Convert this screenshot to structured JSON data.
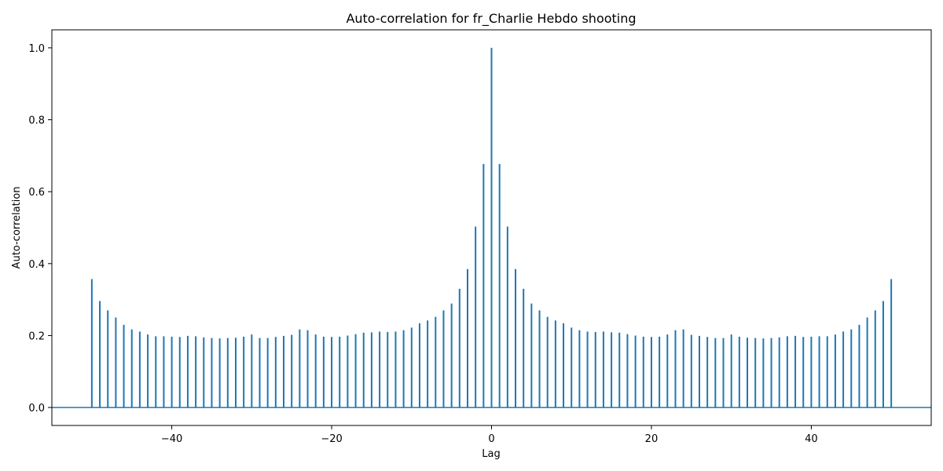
{
  "chart_data": {
    "type": "stem",
    "title": "Auto-correlation for fr_Charlie Hebdo shooting",
    "xlabel": "Lag",
    "ylabel": "Auto-correlation",
    "xlim": [
      -55,
      55
    ],
    "ylim": [
      -0.05,
      1.05
    ],
    "xticks": [
      -40,
      -20,
      0,
      20,
      40
    ],
    "xtick_labels": [
      "−40",
      "−20",
      "0",
      "20",
      "40"
    ],
    "yticks": [
      0.0,
      0.2,
      0.4,
      0.6,
      0.8,
      1.0
    ],
    "ytick_labels": [
      "0.0",
      "0.2",
      "0.4",
      "0.6",
      "0.8",
      "1.0"
    ],
    "grid": false,
    "color": "#1f77b4",
    "baseline": 0,
    "x_start": -50,
    "values": [
      0.357,
      0.296,
      0.27,
      0.25,
      0.23,
      0.217,
      0.211,
      0.203,
      0.198,
      0.198,
      0.197,
      0.196,
      0.199,
      0.198,
      0.195,
      0.193,
      0.192,
      0.193,
      0.194,
      0.197,
      0.203,
      0.193,
      0.193,
      0.196,
      0.199,
      0.202,
      0.217,
      0.215,
      0.203,
      0.197,
      0.196,
      0.197,
      0.2,
      0.204,
      0.208,
      0.209,
      0.211,
      0.21,
      0.211,
      0.215,
      0.222,
      0.234,
      0.242,
      0.252,
      0.27,
      0.289,
      0.33,
      0.385,
      0.503,
      0.677,
      1.0,
      0.677,
      0.503,
      0.385,
      0.33,
      0.289,
      0.27,
      0.252,
      0.242,
      0.234,
      0.222,
      0.215,
      0.211,
      0.21,
      0.211,
      0.209,
      0.208,
      0.204,
      0.2,
      0.197,
      0.196,
      0.197,
      0.203,
      0.215,
      0.217,
      0.202,
      0.199,
      0.196,
      0.193,
      0.193,
      0.203,
      0.197,
      0.194,
      0.193,
      0.192,
      0.193,
      0.195,
      0.198,
      0.199,
      0.196,
      0.197,
      0.198,
      0.198,
      0.203,
      0.211,
      0.217,
      0.23,
      0.25,
      0.27,
      0.296,
      0.357
    ]
  }
}
